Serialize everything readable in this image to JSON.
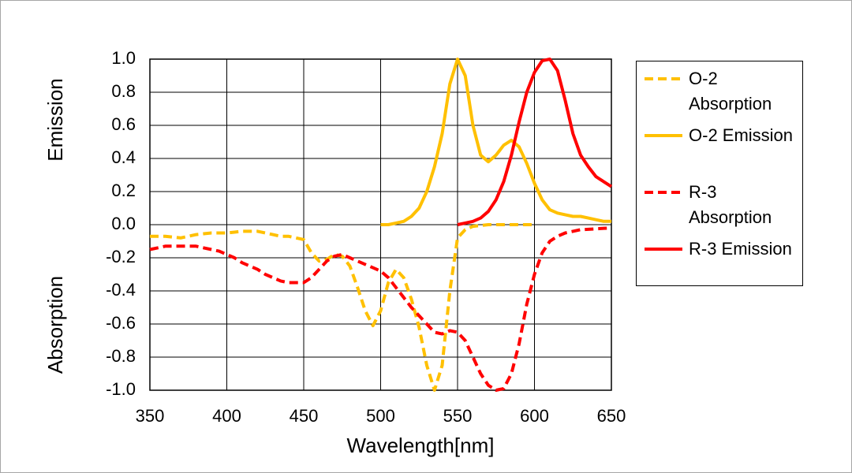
{
  "chart_data": {
    "type": "line",
    "xlabel": "Wavelength[nm]",
    "ylabels": [
      "Emission",
      "Absorption"
    ],
    "x": [
      350,
      355,
      360,
      365,
      370,
      375,
      380,
      385,
      390,
      395,
      400,
      405,
      410,
      415,
      420,
      425,
      430,
      435,
      440,
      445,
      450,
      455,
      460,
      465,
      470,
      475,
      480,
      485,
      490,
      495,
      500,
      505,
      510,
      515,
      520,
      525,
      530,
      535,
      540,
      545,
      550,
      555,
      560,
      565,
      570,
      575,
      580,
      585,
      590,
      595,
      600,
      605,
      610,
      615,
      620,
      625,
      630,
      635,
      640,
      645,
      650
    ],
    "xlim": [
      350,
      650
    ],
    "xticks": [
      350,
      400,
      450,
      500,
      550,
      600,
      650
    ],
    "ylim": [
      -1,
      1
    ],
    "yticks": [
      {
        "value": -1,
        "label": "-1.0"
      },
      -0.8,
      -0.6,
      -0.4,
      -0.2,
      {
        "value": 0,
        "label": "0.0"
      },
      0.2,
      0.4,
      0.6,
      0.8,
      {
        "value": 1,
        "label": "1.0"
      }
    ],
    "grid": true,
    "legend": "right",
    "series": [
      {
        "name": "O-2 Absorption",
        "color": "#FFC000",
        "dashed": true,
        "values": [
          -0.07,
          -0.07,
          -0.07,
          -0.075,
          -0.08,
          -0.07,
          -0.06,
          -0.055,
          -0.05,
          -0.05,
          -0.05,
          -0.045,
          -0.04,
          -0.04,
          -0.04,
          -0.05,
          -0.06,
          -0.07,
          -0.07,
          -0.08,
          -0.09,
          -0.17,
          -0.22,
          -0.21,
          -0.18,
          -0.19,
          -0.25,
          -0.38,
          -0.52,
          -0.61,
          -0.52,
          -0.35,
          -0.27,
          -0.32,
          -0.45,
          -0.62,
          -0.85,
          -1.0,
          -0.85,
          -0.4,
          -0.08,
          -0.03,
          -0.01,
          -0.005,
          0,
          0,
          0,
          0,
          0,
          0,
          0,
          null,
          null,
          null,
          null,
          null,
          null,
          null,
          null,
          null,
          null
        ]
      },
      {
        "name": "O-2 Emission",
        "color": "#FFC000",
        "dashed": false,
        "values": [
          null,
          null,
          null,
          null,
          null,
          null,
          null,
          null,
          null,
          null,
          null,
          null,
          null,
          null,
          null,
          null,
          null,
          null,
          null,
          null,
          null,
          null,
          null,
          null,
          null,
          null,
          null,
          null,
          null,
          null,
          0,
          0,
          0.01,
          0.02,
          0.05,
          0.1,
          0.2,
          0.35,
          0.55,
          0.85,
          1.0,
          0.9,
          0.6,
          0.42,
          0.38,
          0.42,
          0.48,
          0.51,
          0.47,
          0.37,
          0.25,
          0.15,
          0.09,
          0.07,
          0.06,
          0.05,
          0.05,
          0.04,
          0.03,
          0.02,
          0.02
        ]
      },
      {
        "name": "R-3 Absorption",
        "color": "#FF0000",
        "dashed": true,
        "values": [
          -0.15,
          -0.14,
          -0.13,
          -0.13,
          -0.13,
          -0.13,
          -0.13,
          -0.14,
          -0.15,
          -0.16,
          -0.18,
          -0.2,
          -0.23,
          -0.25,
          -0.27,
          -0.3,
          -0.32,
          -0.34,
          -0.35,
          -0.35,
          -0.35,
          -0.32,
          -0.27,
          -0.22,
          -0.19,
          -0.18,
          -0.2,
          -0.22,
          -0.24,
          -0.26,
          -0.28,
          -0.32,
          -0.38,
          -0.44,
          -0.5,
          -0.55,
          -0.6,
          -0.65,
          -0.66,
          -0.64,
          -0.65,
          -0.7,
          -0.8,
          -0.9,
          -0.97,
          -1.0,
          -0.99,
          -0.9,
          -0.72,
          -0.48,
          -0.3,
          -0.17,
          -0.1,
          -0.07,
          -0.05,
          -0.04,
          -0.03,
          -0.028,
          -0.025,
          -0.022,
          -0.02
        ]
      },
      {
        "name": "R-3 Emission",
        "color": "#FF0000",
        "dashed": false,
        "values": [
          null,
          null,
          null,
          null,
          null,
          null,
          null,
          null,
          null,
          null,
          null,
          null,
          null,
          null,
          null,
          null,
          null,
          null,
          null,
          null,
          null,
          null,
          null,
          null,
          null,
          null,
          null,
          null,
          null,
          null,
          null,
          null,
          null,
          null,
          null,
          null,
          null,
          null,
          null,
          null,
          0,
          0.01,
          0.02,
          0.04,
          0.08,
          0.15,
          0.26,
          0.42,
          0.62,
          0.8,
          0.92,
          0.99,
          1.0,
          0.93,
          0.75,
          0.55,
          0.42,
          0.35,
          0.29,
          0.26,
          0.23
        ]
      }
    ]
  }
}
